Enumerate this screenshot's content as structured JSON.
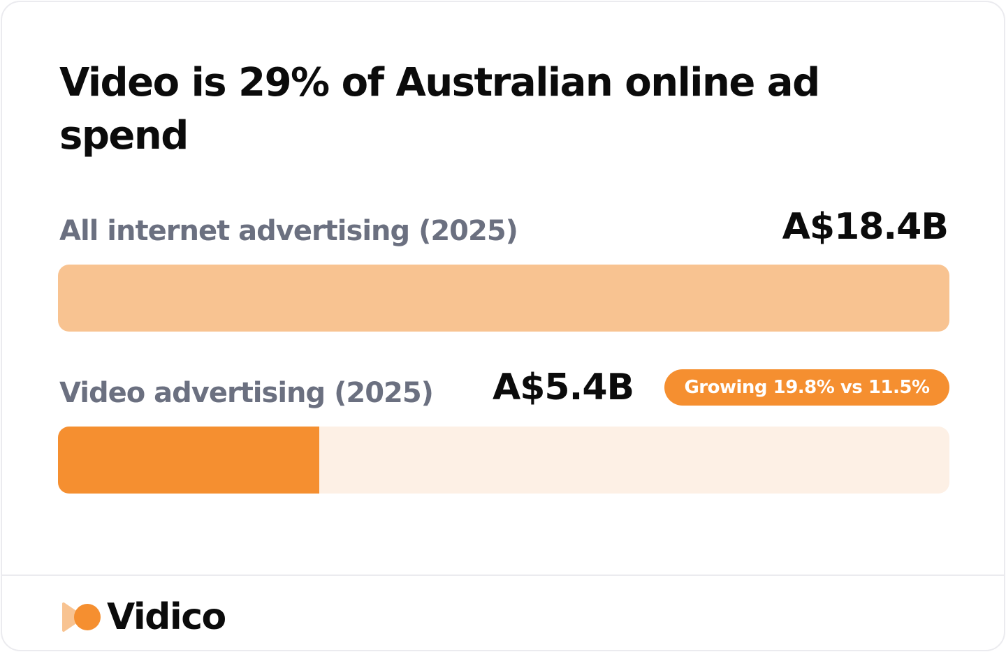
{
  "chart_data": {
    "type": "bar",
    "orientation": "horizontal",
    "title": "Video is 29% of Australian online ad spend",
    "categories": [
      "All internet advertising (2025)",
      "Video advertising (2025)"
    ],
    "value_labels": [
      "A$18.4B",
      "A$5.4B"
    ],
    "values": [
      18.4,
      5.4
    ],
    "unit": "A$ billions",
    "xlim": [
      0,
      18.4
    ],
    "colors": {
      "internet_bar": "#f8c391",
      "video_bar": "#f58f30",
      "video_track": "#fdf0e5"
    },
    "badge": "Growing 19.8% vs 11.5%"
  },
  "brand": {
    "name": "Vidico",
    "logo_icon": "play-arrow-mark-icon",
    "accent": "#f58f30",
    "accent_light": "#f8c391"
  }
}
